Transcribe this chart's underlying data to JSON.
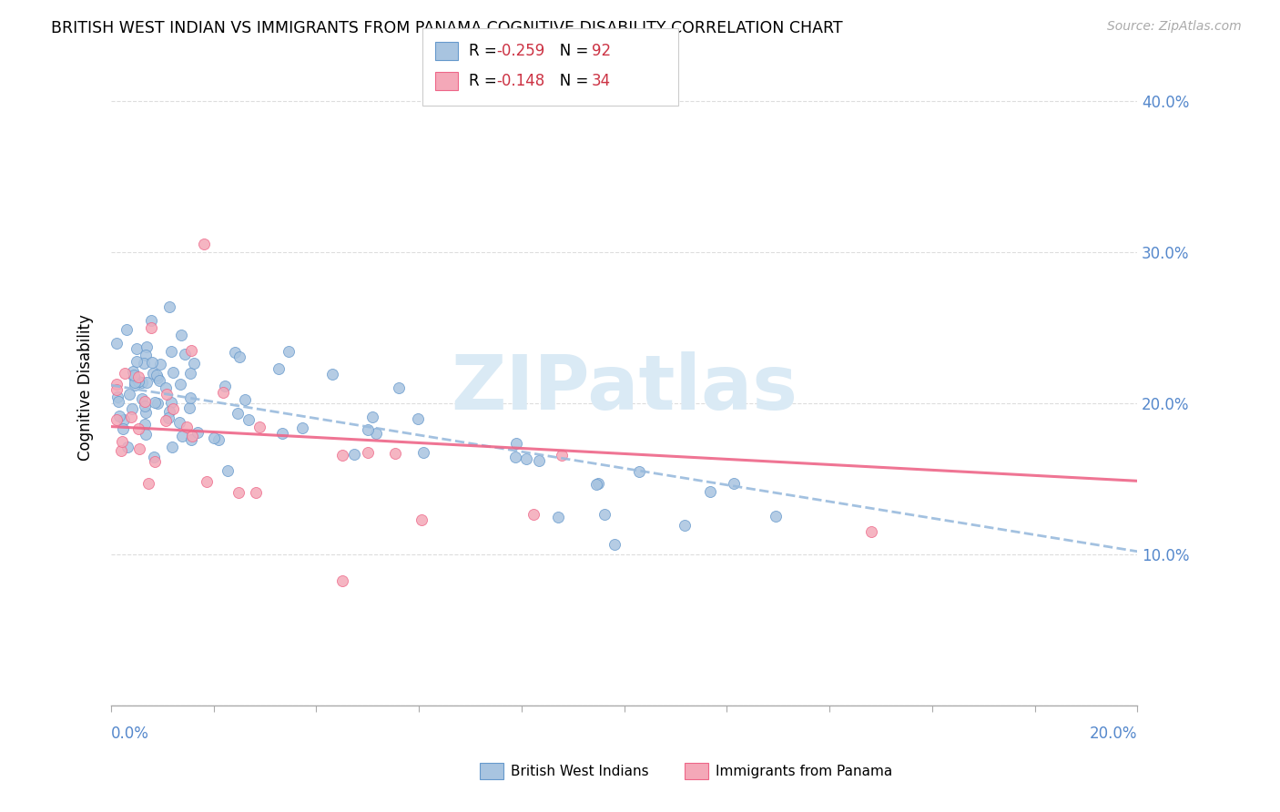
{
  "title": "BRITISH WEST INDIAN VS IMMIGRANTS FROM PANAMA COGNITIVE DISABILITY CORRELATION CHART",
  "source": "Source: ZipAtlas.com",
  "ylabel": "Cognitive Disability",
  "xlim": [
    0.0,
    0.2
  ],
  "ylim": [
    0.0,
    0.42
  ],
  "legend_blue_r": "-0.259",
  "legend_blue_n": "92",
  "legend_pink_r": "-0.148",
  "legend_pink_n": "34",
  "color_blue": "#a8c4e0",
  "color_pink": "#f4a8b8",
  "color_blue_edge": "#6699cc",
  "color_pink_edge": "#ee6688",
  "color_blue_trend": "#99bbdd",
  "color_pink_trend": "#ee6688",
  "watermark_color": "#daeaf5"
}
